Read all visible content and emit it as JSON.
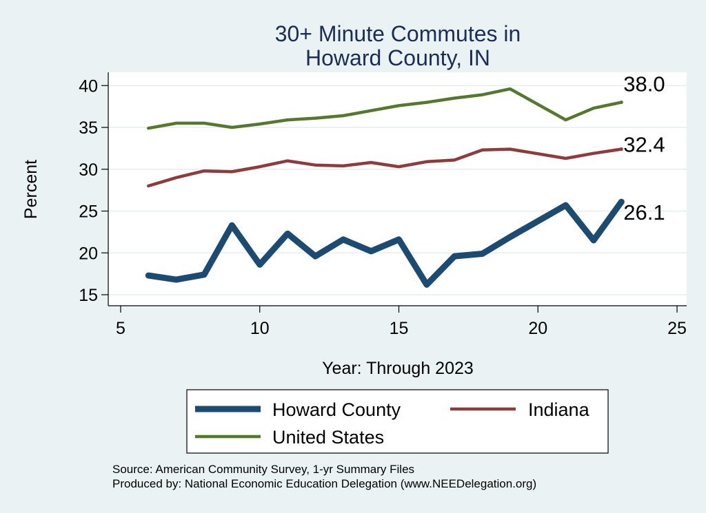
{
  "chart_data": {
    "type": "line",
    "title": [
      "30+ Minute Commutes in",
      "Howard County, IN"
    ],
    "xlabel": "Year: Through 2023",
    "ylabel": "Percent",
    "xlim": [
      4.5,
      25.5
    ],
    "ylim": [
      14,
      41.5
    ],
    "xticks": [
      5,
      10,
      15,
      20,
      25
    ],
    "yticks": [
      15,
      20,
      25,
      30,
      35,
      40
    ],
    "grid": true,
    "legend_position": "bottom",
    "series": [
      {
        "name": "Howard County",
        "color": "#1b4a72",
        "x": [
          6,
          7,
          8,
          9,
          10,
          11,
          12,
          13,
          14,
          15,
          16,
          17,
          18,
          19,
          21,
          22,
          23
        ],
        "y": [
          17.3,
          16.8,
          17.4,
          23.3,
          18.6,
          22.3,
          19.6,
          21.6,
          20.2,
          21.6,
          16.2,
          19.6,
          19.9,
          21.9,
          25.7,
          21.5,
          26.1
        ],
        "end_label": "26.1"
      },
      {
        "name": "Indiana",
        "color": "#8f3a3c",
        "x": [
          6,
          7,
          8,
          9,
          10,
          11,
          12,
          13,
          14,
          15,
          16,
          17,
          18,
          19,
          21,
          22,
          23
        ],
        "y": [
          28.0,
          29.0,
          29.8,
          29.7,
          30.3,
          31.0,
          30.5,
          30.4,
          30.8,
          30.3,
          30.9,
          31.1,
          32.3,
          32.4,
          31.3,
          31.9,
          32.4
        ],
        "end_label": "32.4"
      },
      {
        "name": "United States",
        "color": "#56782c",
        "x": [
          6,
          7,
          8,
          9,
          10,
          11,
          12,
          13,
          14,
          15,
          16,
          17,
          18,
          19,
          21,
          22,
          23
        ],
        "y": [
          34.9,
          35.5,
          35.5,
          35.0,
          35.4,
          35.9,
          36.1,
          36.4,
          37.0,
          37.6,
          38.0,
          38.5,
          38.9,
          39.6,
          35.9,
          37.3,
          38.0
        ],
        "end_label": "38.0"
      }
    ],
    "source_lines": [
      "Source: American Community Survey, 1-yr Summary Files",
      "Produced by: National Economic Education Delegation (www.NEEDelegation.org)"
    ]
  }
}
